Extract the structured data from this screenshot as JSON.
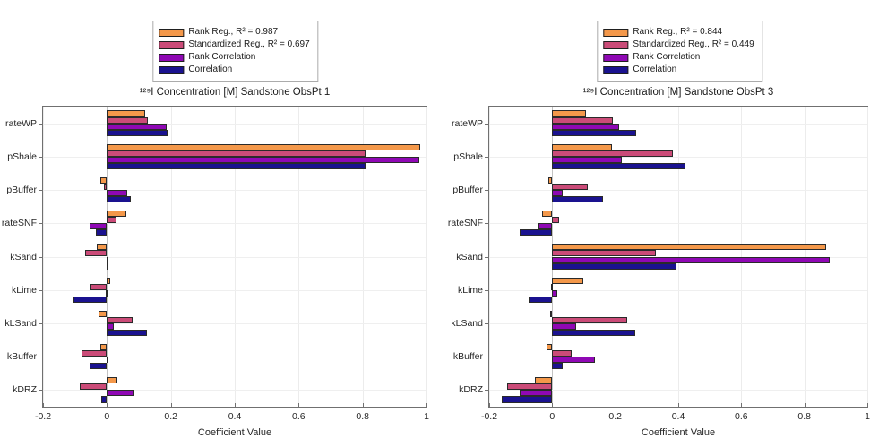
{
  "figure_background": "#ffffff",
  "series_colors": {
    "rank_regression": "#F4984A",
    "standardized_regression": "#CB4B78",
    "rank_correlation": "#8F08B4",
    "correlation": "#1A128F"
  },
  "chart_data": [
    {
      "type": "bar",
      "orientation": "horizontal",
      "title": "¹²⁹I Concentration [M] Sandstone ObsPt 1",
      "xlabel": "Coefficient Value",
      "xlim": [
        -0.2,
        1
      ],
      "x_ticks": [
        -0.2,
        0,
        0.2,
        0.4,
        0.6,
        0.8,
        1
      ],
      "x_tick_labels": [
        "-0.2",
        "0",
        "0.2",
        "0.4",
        "0.6",
        "0.8",
        "1"
      ],
      "grid": true,
      "legend_position": "above-plot-centered",
      "categories": [
        "rateWP",
        "pShale",
        "pBuffer",
        "rateSNF",
        "kSand",
        "kLime",
        "kLSand",
        "kBuffer",
        "kDRZ"
      ],
      "series": [
        {
          "name": "Rank Reg., R² = 0.987",
          "color": "#F4984A",
          "values": [
            0.12,
            0.98,
            -0.02,
            0.06,
            -0.033,
            0.01,
            -0.027,
            -0.021,
            0.032
          ]
        },
        {
          "name": "Standardized Reg., R² = 0.697",
          "color": "#CB4B78",
          "values": [
            0.128,
            0.808,
            -0.01,
            0.031,
            -0.068,
            -0.052,
            0.08,
            -0.08,
            -0.084
          ]
        },
        {
          "name": "Rank Correlation",
          "color": "#8F08B4",
          "values": [
            0.188,
            0.978,
            0.064,
            -0.053,
            0.005,
            -0.005,
            0.021,
            0.005,
            0.083
          ]
        },
        {
          "name": "Correlation",
          "color": "#1A128F",
          "values": [
            0.19,
            0.81,
            0.076,
            -0.035,
            0.003,
            -0.106,
            0.124,
            -0.054,
            -0.017
          ]
        }
      ]
    },
    {
      "type": "bar",
      "orientation": "horizontal",
      "title": "¹²⁹I Concentration [M] Sandstone ObsPt 3",
      "xlabel": "Coefficient Value",
      "xlim": [
        -0.2,
        1
      ],
      "x_ticks": [
        -0.2,
        0,
        0.2,
        0.4,
        0.6,
        0.8,
        1
      ],
      "x_tick_labels": [
        "-0.2",
        "0",
        "0.2",
        "0.4",
        "0.6",
        "0.8",
        "1"
      ],
      "grid": true,
      "legend_position": "above-plot-centered",
      "categories": [
        "rateWP",
        "pShale",
        "pBuffer",
        "rateSNF",
        "kSand",
        "kLime",
        "kLSand",
        "kBuffer",
        "kDRZ"
      ],
      "series": [
        {
          "name": "Rank Reg., R² = 0.844",
          "color": "#F4984A",
          "values": [
            0.108,
            0.19,
            -0.012,
            -0.033,
            0.868,
            0.1,
            -0.008,
            -0.017,
            -0.056
          ]
        },
        {
          "name": "Standardized Reg., R² = 0.449",
          "color": "#CB4B78",
          "values": [
            0.192,
            0.383,
            0.113,
            0.023,
            0.328,
            -0.005,
            0.237,
            0.063,
            -0.144
          ]
        },
        {
          "name": "Rank Correlation",
          "color": "#8F08B4",
          "values": [
            0.213,
            0.22,
            0.034,
            -0.045,
            0.881,
            0.015,
            0.075,
            0.135,
            -0.103
          ]
        },
        {
          "name": "Correlation",
          "color": "#1A128F",
          "values": [
            0.267,
            0.423,
            0.161,
            -0.103,
            0.395,
            -0.075,
            0.263,
            0.032,
            -0.161
          ]
        }
      ]
    }
  ]
}
